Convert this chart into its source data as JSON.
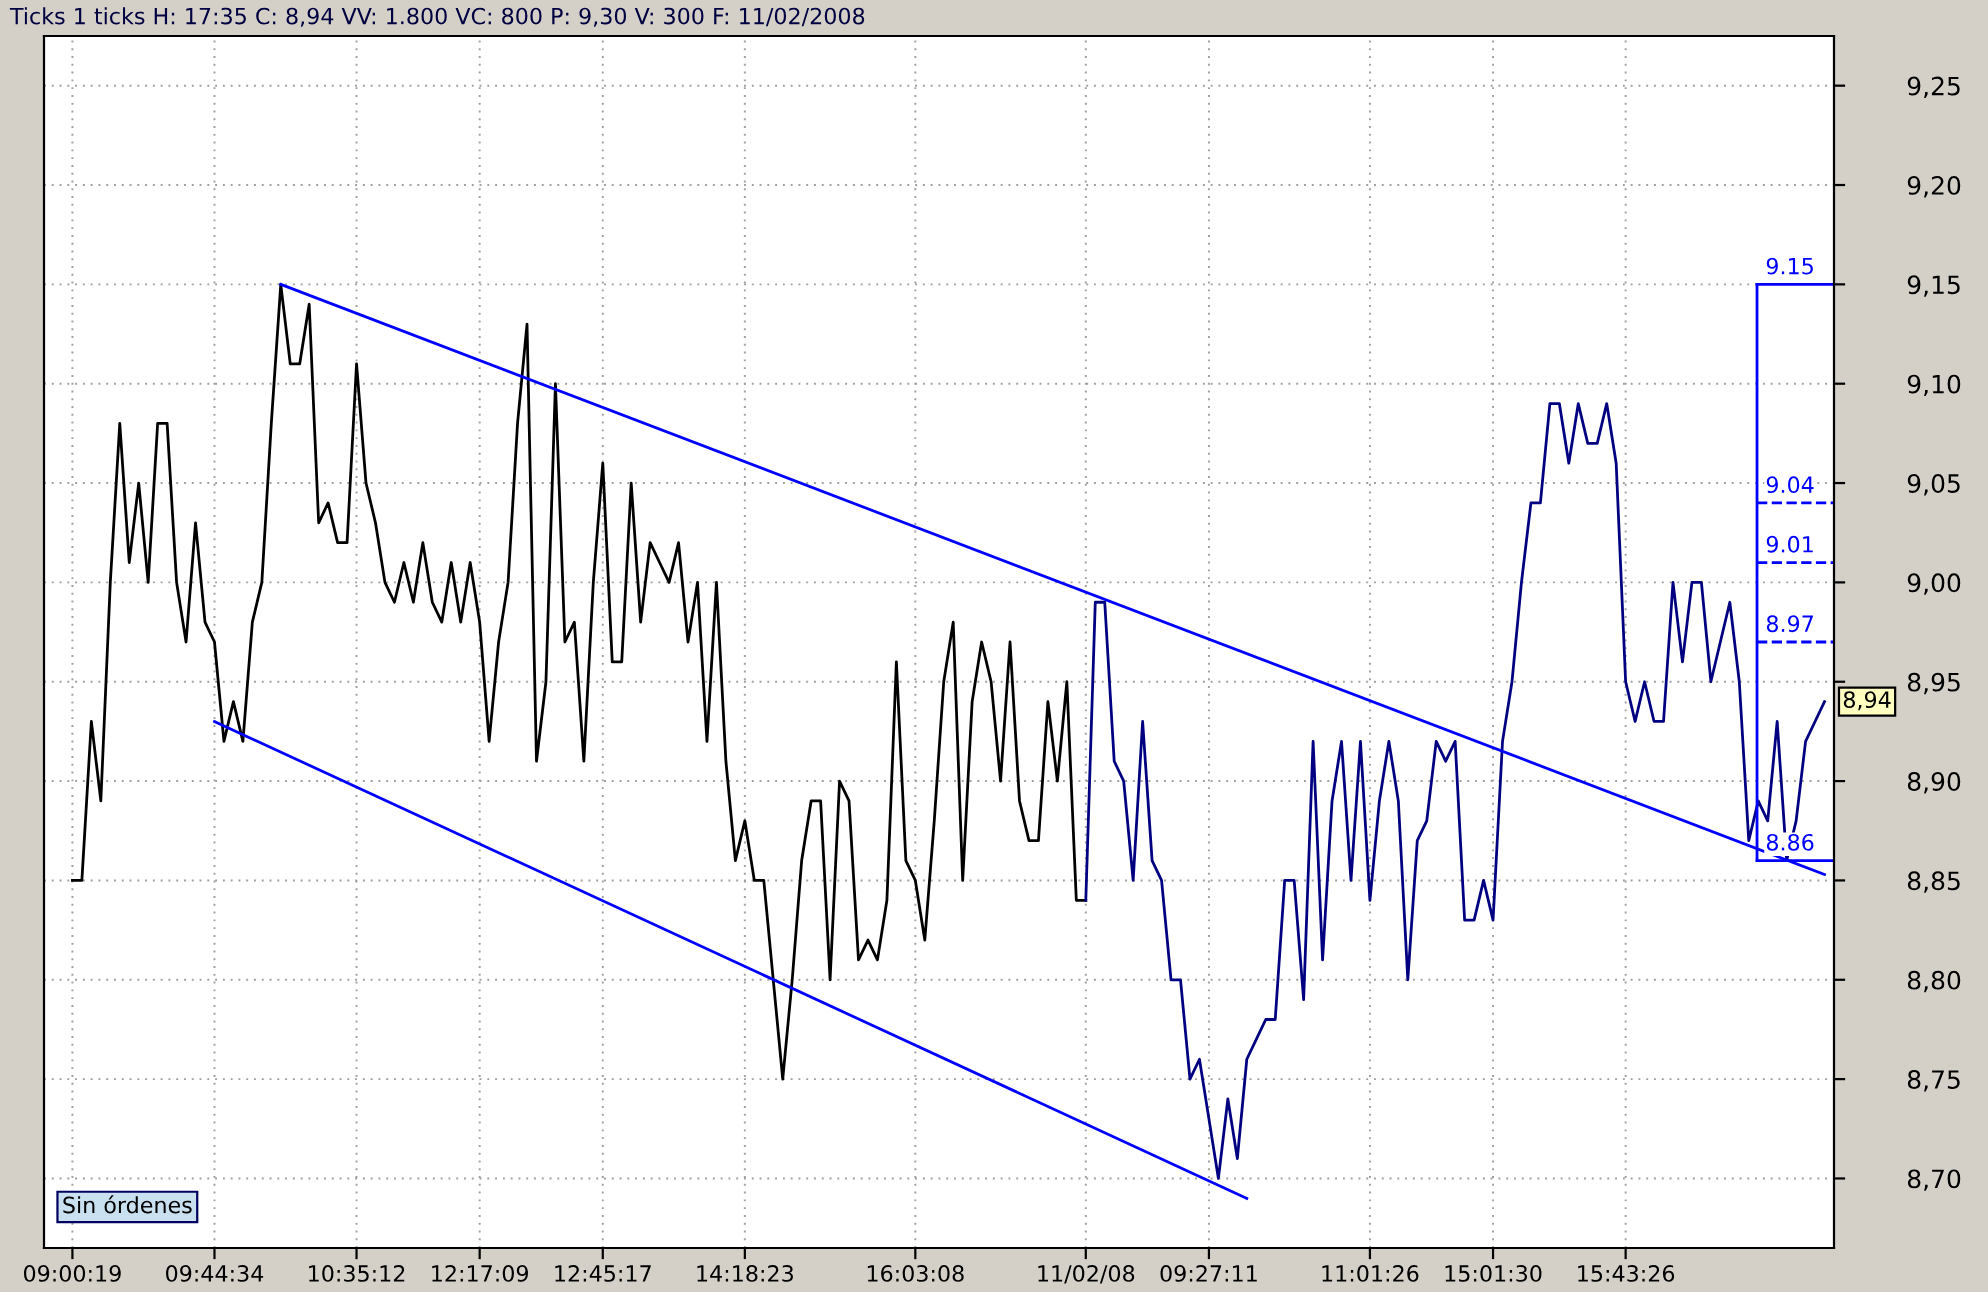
{
  "chart_data": {
    "type": "line",
    "title": "Ticks 1 ticks H: 17:35 C: 8,94 VV: 1.800 VC: 800 P: 9,30 V: 300 F: 11/02/2008",
    "categories": [
      "09:00:19",
      null,
      null,
      null,
      null,
      null,
      null,
      null,
      null,
      null,
      null,
      null,
      null,
      null,
      null,
      "09:44:34",
      null,
      null,
      null,
      null,
      null,
      null,
      null,
      null,
      null,
      null,
      null,
      null,
      null,
      null,
      "10:35:12",
      null,
      null,
      null,
      null,
      null,
      null,
      null,
      null,
      null,
      null,
      null,
      null,
      "12:17:09",
      null,
      null,
      null,
      null,
      null,
      null,
      null,
      null,
      null,
      null,
      null,
      null,
      "12:45:17",
      null,
      null,
      null,
      null,
      null,
      null,
      null,
      null,
      null,
      null,
      null,
      null,
      null,
      null,
      "14:18:23",
      null,
      null,
      null,
      null,
      null,
      null,
      null,
      null,
      null,
      null,
      null,
      null,
      null,
      null,
      null,
      null,
      null,
      "16:03:08",
      null,
      null,
      null,
      null,
      null,
      null,
      null,
      null,
      null,
      null,
      null,
      null,
      null,
      null,
      null,
      null,
      null,
      "11/02/08",
      null,
      null,
      null,
      null,
      null,
      null,
      null,
      null,
      null,
      null,
      null,
      null,
      "09:27:11",
      null,
      null,
      null,
      null,
      null,
      null,
      null,
      null,
      null,
      null,
      null,
      null,
      null,
      null,
      null,
      null,
      "11:01:26",
      null,
      null,
      null,
      null,
      null,
      null,
      null,
      null,
      null,
      null,
      null,
      null,
      "15:01:30",
      null,
      null,
      null,
      null,
      null,
      null,
      null,
      null,
      null,
      null,
      null,
      null,
      null,
      "15:43:26",
      null,
      null,
      null,
      null,
      null,
      null,
      null,
      null,
      null,
      null,
      null,
      null,
      null,
      null,
      null,
      null,
      null,
      null,
      null,
      null,
      null
    ],
    "ylim": [
      8.665,
      9.275
    ],
    "yticks": [
      {
        "value": 8.7,
        "label": "8,70"
      },
      {
        "value": 8.75,
        "label": "8,75"
      },
      {
        "value": 8.8,
        "label": "8,80"
      },
      {
        "value": 8.85,
        "label": "8,85"
      },
      {
        "value": 8.9,
        "label": "8,90"
      },
      {
        "value": 8.95,
        "label": "8,95"
      },
      {
        "value": 9.0,
        "label": "9,00"
      },
      {
        "value": 9.05,
        "label": "9,05"
      },
      {
        "value": 9.1,
        "label": "9,10"
      },
      {
        "value": 9.15,
        "label": "9,15"
      },
      {
        "value": 9.2,
        "label": "9,20"
      },
      {
        "value": 9.25,
        "label": "9,25"
      }
    ],
    "grid": true,
    "series": [
      {
        "color": "#000000",
        "line_style": "solid",
        "values": [
          8.85,
          8.85,
          8.93,
          8.89,
          9.0,
          9.08,
          9.01,
          9.05,
          9.0,
          9.08,
          9.08,
          9.0,
          8.97,
          9.03,
          8.98,
          8.97,
          8.92,
          8.94,
          8.92,
          8.98,
          9.0,
          9.08,
          9.15,
          9.11,
          9.11,
          9.14,
          9.03,
          9.04,
          9.02,
          9.02,
          9.11,
          9.05,
          9.03,
          9.0,
          8.99,
          9.01,
          8.99,
          9.02,
          8.99,
          8.98,
          9.01,
          8.98,
          9.01,
          8.98,
          8.92,
          8.97,
          9.0,
          9.08,
          9.13,
          8.91,
          8.95,
          9.1,
          8.97,
          8.98,
          8.91,
          9.0,
          9.06,
          8.96,
          8.96,
          9.05,
          8.98,
          9.02,
          9.01,
          9.0,
          9.02,
          8.97,
          9.0,
          8.92,
          9.0,
          8.91,
          8.86,
          8.88,
          8.85,
          8.85,
          8.8,
          8.75,
          8.8,
          8.86,
          8.89,
          8.89,
          8.8,
          8.9,
          8.89,
          8.81,
          8.82,
          8.81,
          8.84,
          8.96,
          8.86,
          8.85,
          8.82,
          8.88,
          8.95,
          8.98,
          8.85,
          8.94,
          8.97,
          8.95,
          8.9,
          8.97,
          8.89,
          8.87,
          8.87,
          8.94,
          8.9,
          8.95,
          8.84,
          8.84,
          null,
          null,
          null,
          null,
          null,
          null,
          null,
          null,
          null,
          null,
          null,
          null,
          null,
          null,
          null,
          null,
          null,
          null,
          null,
          null,
          null,
          null,
          null,
          null,
          null,
          null,
          null,
          null,
          null,
          null,
          null,
          null,
          null,
          null,
          null,
          null,
          null,
          null,
          null,
          null,
          null,
          null,
          null,
          null,
          null,
          null,
          null,
          null,
          null,
          null,
          null,
          null,
          null,
          null,
          null,
          null,
          null,
          null,
          null,
          null,
          null,
          null,
          null,
          null,
          null,
          null,
          null,
          null,
          null,
          null,
          null,
          null,
          null,
          null,
          null,
          null,
          null,
          null
        ]
      },
      {
        "color": "#000080",
        "line_style": "solid",
        "values": [
          null,
          null,
          null,
          null,
          null,
          null,
          null,
          null,
          null,
          null,
          null,
          null,
          null,
          null,
          null,
          null,
          null,
          null,
          null,
          null,
          null,
          null,
          null,
          null,
          null,
          null,
          null,
          null,
          null,
          null,
          null,
          null,
          null,
          null,
          null,
          null,
          null,
          null,
          null,
          null,
          null,
          null,
          null,
          null,
          null,
          null,
          null,
          null,
          null,
          null,
          null,
          null,
          null,
          null,
          null,
          null,
          null,
          null,
          null,
          null,
          null,
          null,
          null,
          null,
          null,
          null,
          null,
          null,
          null,
          null,
          null,
          null,
          null,
          null,
          null,
          null,
          null,
          null,
          null,
          null,
          null,
          null,
          null,
          null,
          null,
          null,
          null,
          null,
          null,
          null,
          null,
          null,
          null,
          null,
          null,
          null,
          null,
          null,
          null,
          null,
          null,
          null,
          null,
          null,
          null,
          null,
          null,
          8.84,
          8.99,
          8.99,
          8.91,
          8.9,
          8.85,
          8.93,
          8.86,
          8.85,
          8.8,
          8.8,
          8.75,
          8.76,
          8.73,
          8.7,
          8.74,
          8.71,
          8.76,
          8.77,
          8.78,
          8.78,
          8.85,
          8.85,
          8.79,
          8.92,
          8.81,
          8.89,
          8.92,
          8.85,
          8.92,
          8.84,
          8.89,
          8.92,
          8.89,
          8.8,
          8.87,
          8.88,
          8.92,
          8.91,
          8.92,
          8.83,
          8.83,
          8.85,
          8.83,
          8.92,
          8.95,
          9.0,
          9.04,
          9.04,
          9.09,
          9.09,
          9.06,
          9.09,
          9.07,
          9.07,
          9.09,
          9.06,
          8.95,
          8.93,
          8.95,
          8.93,
          8.93,
          9.0,
          8.96,
          9.0,
          9.0,
          8.95,
          8.97,
          8.99,
          8.95,
          8.87,
          8.89,
          8.88,
          8.93,
          8.86,
          8.88,
          8.92,
          8.93,
          8.94
        ]
      },
      {
        "color": "#0000ff",
        "line_style": "solid",
        "values": [
          null,
          null,
          null,
          null,
          null,
          null,
          null,
          null,
          null,
          null,
          null,
          null,
          null,
          null,
          null,
          null,
          null,
          null,
          null,
          null,
          null,
          null,
          9.15,
          null,
          null,
          null,
          null,
          null,
          null,
          null,
          null,
          null,
          null,
          null,
          null,
          null,
          null,
          null,
          null,
          null,
          null,
          null,
          null,
          null,
          null,
          null,
          null,
          null,
          null,
          null,
          null,
          null,
          null,
          null,
          null,
          null,
          null,
          null,
          null,
          null,
          null,
          null,
          null,
          null,
          null,
          null,
          null,
          null,
          null,
          null,
          null,
          null,
          null,
          null,
          null,
          null,
          null,
          null,
          null,
          null,
          null,
          null,
          null,
          null,
          null,
          null,
          null,
          null,
          null,
          null,
          null,
          null,
          null,
          null,
          null,
          null,
          null,
          null,
          null,
          null,
          null,
          null,
          null,
          null,
          null,
          null,
          null,
          null,
          null,
          null,
          null,
          null,
          null,
          null,
          null,
          null,
          null,
          null,
          null,
          null,
          null,
          null,
          null,
          null,
          null,
          null,
          null,
          null,
          null,
          null,
          null,
          null,
          null,
          null,
          null,
          null,
          null,
          null,
          null,
          null,
          null,
          null,
          null,
          null,
          null,
          null,
          null,
          null,
          null,
          null,
          null,
          null,
          null,
          null,
          null,
          null,
          null,
          null,
          null,
          null,
          null,
          null,
          null,
          null,
          null,
          null,
          null,
          null,
          null,
          null,
          null,
          null,
          null,
          null,
          null,
          null,
          null,
          null,
          null,
          null,
          null,
          null,
          null,
          null,
          null,
          8.853
        ]
      },
      {
        "color": "#0000ff",
        "line_style": "solid",
        "values": [
          null,
          null,
          null,
          null,
          null,
          null,
          null,
          null,
          null,
          null,
          null,
          null,
          null,
          null,
          null,
          8.93,
          null,
          null,
          null,
          null,
          null,
          null,
          null,
          null,
          null,
          null,
          null,
          null,
          null,
          null,
          null,
          null,
          null,
          null,
          null,
          null,
          null,
          null,
          null,
          null,
          null,
          null,
          null,
          null,
          null,
          null,
          null,
          null,
          null,
          null,
          null,
          null,
          null,
          null,
          null,
          null,
          null,
          null,
          null,
          null,
          null,
          null,
          null,
          null,
          null,
          null,
          null,
          null,
          null,
          null,
          null,
          null,
          null,
          null,
          null,
          null,
          null,
          null,
          null,
          null,
          null,
          null,
          null,
          null,
          null,
          null,
          null,
          null,
          null,
          null,
          null,
          null,
          null,
          null,
          null,
          null,
          null,
          null,
          null,
          null,
          null,
          null,
          null,
          null,
          null,
          null,
          null,
          null,
          null,
          null,
          null,
          null,
          null,
          null,
          null,
          null,
          null,
          null,
          null,
          null,
          null,
          null,
          null,
          null,
          8.69,
          null,
          null,
          null,
          null,
          null,
          null,
          null,
          null,
          null,
          null,
          null,
          null,
          null,
          null,
          null,
          null,
          null,
          null,
          null,
          null,
          null,
          null,
          null,
          null,
          null,
          null,
          null,
          null,
          null,
          null,
          null,
          null,
          null,
          null,
          null,
          null,
          null,
          null,
          null,
          null,
          null,
          null,
          null,
          null,
          null,
          null,
          null,
          null,
          null,
          null,
          null,
          null,
          null,
          null,
          null,
          null,
          null,
          null,
          null,
          null,
          null
        ]
      }
    ],
    "ref_lines": [
      {
        "axis": "y",
        "value": 9.15,
        "label": "9.15",
        "color": "#0000ff",
        "line_style": "solid"
      },
      {
        "axis": "y",
        "value": 9.04,
        "label": "9.04",
        "color": "#0000ff",
        "line_style": "dashed"
      },
      {
        "axis": "y",
        "value": 9.01,
        "label": "9.01",
        "color": "#0000ff",
        "line_style": "dashed"
      },
      {
        "axis": "y",
        "value": 8.97,
        "label": "8.97",
        "color": "#0000ff",
        "line_style": "dashed"
      },
      {
        "axis": "y",
        "value": 8.86,
        "label": "8.86",
        "color": "#0000ff",
        "line_style": "solid"
      }
    ],
    "annotations": [
      "8,94",
      "Sin órdenes"
    ]
  }
}
